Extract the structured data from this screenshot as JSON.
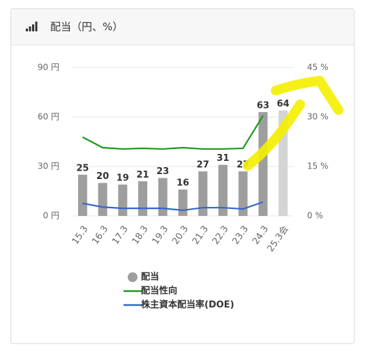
{
  "chart_data": {
    "type": "bar",
    "title": "配当（円、%）",
    "categories": [
      "15.3",
      "16.3",
      "17.3",
      "18.3",
      "19.3",
      "20.3",
      "21.3",
      "22.3",
      "23.3",
      "24.3",
      "25.3会"
    ],
    "series": [
      {
        "name": "配当",
        "type": "bar",
        "color": "#9e9e9e",
        "colors": [
          "#9e9e9e",
          "#9e9e9e",
          "#9e9e9e",
          "#9e9e9e",
          "#9e9e9e",
          "#9e9e9e",
          "#9e9e9e",
          "#9e9e9e",
          "#9e9e9e",
          "#9e9e9e",
          "#d4d4d4"
        ],
        "values": [
          25,
          20,
          19,
          21,
          23,
          16,
          27,
          31,
          27,
          63,
          64
        ]
      },
      {
        "name": "配当性向",
        "type": "line",
        "axis": "y2",
        "color": "#1a9a1a",
        "values": [
          23.9,
          20.7,
          20.3,
          20.5,
          20.3,
          20.7,
          20.3,
          20.3,
          20.5,
          30.4,
          null
        ]
      },
      {
        "name": "株主資本配当率(DOE)",
        "type": "line",
        "axis": "y2",
        "color": "#3366cc",
        "values": [
          3.8,
          2.7,
          2.3,
          2.3,
          2.3,
          1.7,
          2.5,
          2.5,
          2.1,
          4.2,
          null
        ]
      }
    ],
    "ylim": [
      0,
      90
    ],
    "yticks": [
      {
        "value": 0,
        "label": "0 円"
      },
      {
        "value": 30,
        "label": "30 円"
      },
      {
        "value": 60,
        "label": "60 円"
      },
      {
        "value": 90,
        "label": "90 円"
      }
    ],
    "y2lim": [
      0,
      45
    ],
    "y2ticks": [
      {
        "value": 0,
        "label": "0 %"
      },
      {
        "value": 15,
        "label": "15 %"
      },
      {
        "value": 30,
        "label": "30 %"
      },
      {
        "value": 45,
        "label": "45 %"
      }
    ],
    "grid": true,
    "legend": "bottom"
  }
}
